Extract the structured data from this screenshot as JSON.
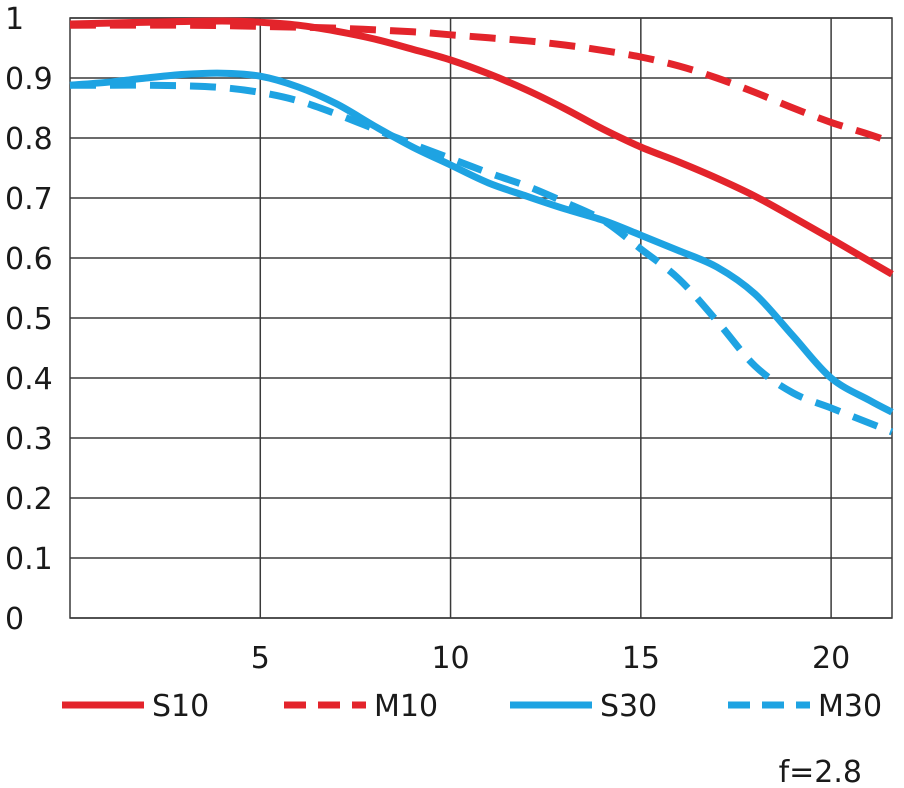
{
  "chart_data": {
    "type": "line",
    "title": "",
    "xlabel": "",
    "ylabel": "",
    "xlim": [
      0,
      21.6
    ],
    "ylim": [
      0,
      1
    ],
    "grid": true,
    "x_ticks": [
      "5",
      "10",
      "15",
      "20"
    ],
    "y_ticks": [
      "0",
      "0.1",
      "0.2",
      "0.3",
      "0.4",
      "0.5",
      "0.6",
      "0.7",
      "0.8",
      "0.9",
      "1"
    ],
    "legend_position": "bottom",
    "annotation": "f=2.8",
    "series": [
      {
        "name": "S10",
        "color": "#e3242b",
        "dashed": false,
        "x": [
          0,
          2,
          4,
          5,
          6,
          7,
          8,
          9,
          10,
          11,
          12,
          13,
          14,
          15,
          16,
          17,
          18,
          19,
          20,
          21,
          21.6
        ],
        "y": [
          0.99,
          0.993,
          0.995,
          0.993,
          0.988,
          0.978,
          0.965,
          0.948,
          0.93,
          0.907,
          0.88,
          0.849,
          0.815,
          0.785,
          0.76,
          0.733,
          0.703,
          0.668,
          0.632,
          0.595,
          0.573
        ]
      },
      {
        "name": "M10",
        "color": "#e3242b",
        "dashed": true,
        "x": [
          0,
          3,
          5,
          7,
          9,
          10,
          11,
          12,
          13,
          14,
          15,
          16,
          17,
          18,
          19,
          20,
          21,
          21.6
        ],
        "y": [
          0.988,
          0.988,
          0.986,
          0.983,
          0.977,
          0.972,
          0.967,
          0.962,
          0.955,
          0.946,
          0.935,
          0.92,
          0.9,
          0.876,
          0.85,
          0.826,
          0.806,
          0.793
        ]
      },
      {
        "name": "S30",
        "color": "#1ea3e2",
        "dashed": false,
        "x": [
          0,
          1,
          2,
          3,
          4,
          5,
          6,
          7,
          8,
          9,
          10,
          11,
          12,
          13,
          14,
          15,
          16,
          17,
          18,
          19,
          20,
          21,
          21.6
        ],
        "y": [
          0.888,
          0.893,
          0.9,
          0.906,
          0.908,
          0.903,
          0.885,
          0.857,
          0.82,
          0.785,
          0.755,
          0.725,
          0.703,
          0.682,
          0.663,
          0.638,
          0.612,
          0.585,
          0.54,
          0.47,
          0.4,
          0.363,
          0.343
        ]
      },
      {
        "name": "M30",
        "color": "#1ea3e2",
        "dashed": true,
        "x": [
          0,
          1,
          2,
          3,
          4,
          5,
          6,
          7,
          8,
          9,
          10,
          11,
          12,
          13,
          14,
          15,
          16,
          17,
          18,
          19,
          20,
          21,
          21.6
        ],
        "y": [
          0.888,
          0.888,
          0.888,
          0.887,
          0.884,
          0.876,
          0.862,
          0.84,
          0.815,
          0.79,
          0.766,
          0.742,
          0.72,
          0.693,
          0.663,
          0.615,
          0.565,
          0.495,
          0.42,
          0.375,
          0.35,
          0.325,
          0.31
        ]
      }
    ]
  }
}
